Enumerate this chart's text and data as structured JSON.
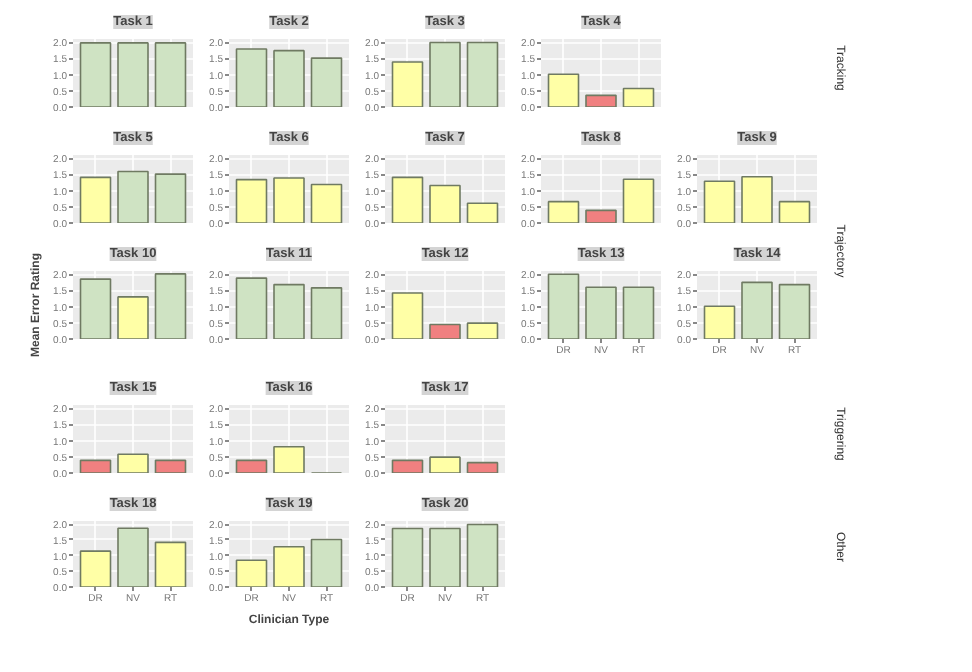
{
  "chart_data": [
    {
      "type": "bar",
      "title": "Task 1",
      "categories": [
        null,
        null,
        null
      ],
      "values": [
        1.98,
        1.98,
        1.98
      ],
      "colors": [
        "#cfe3c3",
        "#cfe3c3",
        "#cfe3c3"
      ],
      "ylim": [
        0,
        2.1
      ],
      "yticks": [
        {
          "value": 0,
          "label": "0.0"
        },
        {
          "value": 0.5,
          "label": "0.5"
        },
        {
          "value": 1,
          "label": "1.0"
        },
        {
          "value": 1.5,
          "label": "1.5"
        },
        {
          "value": 2,
          "label": "2.0"
        }
      ],
      "grid": true,
      "tick_labels": "y"
    },
    {
      "type": "bar",
      "title": "Task 2",
      "categories": [
        null,
        null,
        null
      ],
      "values": [
        1.79,
        1.74,
        1.51
      ],
      "colors": [
        "#cfe3c3",
        "#cfe3c3",
        "#cfe3c3"
      ],
      "ylim": [
        0,
        2.1
      ],
      "yticks": [
        {
          "value": 0,
          "label": "0.0"
        },
        {
          "value": 0.5,
          "label": "0.5"
        },
        {
          "value": 1,
          "label": "1.0"
        },
        {
          "value": 1.5,
          "label": "1.5"
        },
        {
          "value": 2,
          "label": "2.0"
        }
      ],
      "grid": true,
      "tick_labels": "y"
    },
    {
      "type": "bar",
      "title": "Task 3",
      "categories": [
        null,
        null,
        null
      ],
      "values": [
        1.39,
        1.99,
        1.99
      ],
      "colors": [
        "#ffffa6",
        "#cfe3c3",
        "#cfe3c3"
      ],
      "ylim": [
        0,
        2.1
      ],
      "yticks": [
        {
          "value": 0,
          "label": "0.0"
        },
        {
          "value": 0.5,
          "label": "0.5"
        },
        {
          "value": 1,
          "label": "1.0"
        },
        {
          "value": 1.5,
          "label": "1.5"
        },
        {
          "value": 2,
          "label": "2.0"
        }
      ],
      "grid": true,
      "tick_labels": "y"
    },
    {
      "type": "bar",
      "title": "Task 4",
      "categories": [
        null,
        null,
        null
      ],
      "values": [
        1.01,
        0.36,
        0.57
      ],
      "colors": [
        "#ffffa6",
        "#f08080",
        "#ffffa6"
      ],
      "ylim": [
        0,
        2.1
      ],
      "yticks": [
        {
          "value": 0,
          "label": "0.0"
        },
        {
          "value": 0.5,
          "label": "0.5"
        },
        {
          "value": 1,
          "label": "1.0"
        },
        {
          "value": 1.5,
          "label": "1.5"
        },
        {
          "value": 2,
          "label": "2.0"
        }
      ],
      "grid": true,
      "tick_labels": "y",
      "annotations": [
        "Tracking"
      ]
    },
    {
      "type": "bar",
      "title": "Task 5",
      "categories": [
        null,
        null,
        null
      ],
      "values": [
        1.41,
        1.59,
        1.51
      ],
      "colors": [
        "#ffffa6",
        "#cfe3c3",
        "#cfe3c3"
      ],
      "ylim": [
        0,
        2.1
      ],
      "yticks": [
        {
          "value": 0,
          "label": "0.0"
        },
        {
          "value": 0.5,
          "label": "0.5"
        },
        {
          "value": 1,
          "label": "1.0"
        },
        {
          "value": 1.5,
          "label": "1.5"
        },
        {
          "value": 2,
          "label": "2.0"
        }
      ],
      "grid": true,
      "tick_labels": "y"
    },
    {
      "type": "bar",
      "title": "Task 6",
      "categories": [
        null,
        null,
        null
      ],
      "values": [
        1.34,
        1.39,
        1.19
      ],
      "colors": [
        "#ffffa6",
        "#ffffa6",
        "#ffffa6"
      ],
      "ylim": [
        0,
        2.1
      ],
      "yticks": [
        {
          "value": 0,
          "label": "0.0"
        },
        {
          "value": 0.5,
          "label": "0.5"
        },
        {
          "value": 1,
          "label": "1.0"
        },
        {
          "value": 1.5,
          "label": "1.5"
        },
        {
          "value": 2,
          "label": "2.0"
        }
      ],
      "grid": true,
      "tick_labels": "y"
    },
    {
      "type": "bar",
      "title": "Task 7",
      "categories": [
        null,
        null,
        null
      ],
      "values": [
        1.41,
        1.16,
        0.61
      ],
      "colors": [
        "#ffffa6",
        "#ffffa6",
        "#ffffa6"
      ],
      "ylim": [
        0,
        2.1
      ],
      "yticks": [
        {
          "value": 0,
          "label": "0.0"
        },
        {
          "value": 0.5,
          "label": "0.5"
        },
        {
          "value": 1,
          "label": "1.0"
        },
        {
          "value": 1.5,
          "label": "1.5"
        },
        {
          "value": 2,
          "label": "2.0"
        }
      ],
      "grid": true,
      "tick_labels": "y"
    },
    {
      "type": "bar",
      "title": "Task 8",
      "categories": [
        null,
        null,
        null
      ],
      "values": [
        0.66,
        0.39,
        1.35
      ],
      "colors": [
        "#ffffa6",
        "#f08080",
        "#ffffa6"
      ],
      "ylim": [
        0,
        2.1
      ],
      "yticks": [
        {
          "value": 0,
          "label": "0.0"
        },
        {
          "value": 0.5,
          "label": "0.5"
        },
        {
          "value": 1,
          "label": "1.0"
        },
        {
          "value": 1.5,
          "label": "1.5"
        },
        {
          "value": 2,
          "label": "2.0"
        }
      ],
      "grid": true,
      "tick_labels": "y"
    },
    {
      "type": "bar",
      "title": "Task 9",
      "categories": [
        null,
        null,
        null
      ],
      "values": [
        1.29,
        1.43,
        0.66
      ],
      "colors": [
        "#ffffa6",
        "#ffffa6",
        "#ffffa6"
      ],
      "ylim": [
        0,
        2.1
      ],
      "yticks": [
        {
          "value": 0,
          "label": "0.0"
        },
        {
          "value": 0.5,
          "label": "0.5"
        },
        {
          "value": 1,
          "label": "1.0"
        },
        {
          "value": 1.5,
          "label": "1.5"
        },
        {
          "value": 2,
          "label": "2.0"
        }
      ],
      "grid": true,
      "tick_labels": "y",
      "annotations": [
        "Trajectory"
      ]
    },
    {
      "type": "bar",
      "title": "Task 10",
      "categories": [
        null,
        null,
        null
      ],
      "values": [
        1.85,
        1.3,
        2.01
      ],
      "colors": [
        "#cfe3c3",
        "#ffffa6",
        "#cfe3c3"
      ],
      "ylim": [
        0,
        2.1
      ],
      "yticks": [
        {
          "value": 0,
          "label": "0.0"
        },
        {
          "value": 0.5,
          "label": "0.5"
        },
        {
          "value": 1,
          "label": "1.0"
        },
        {
          "value": 1.5,
          "label": "1.5"
        },
        {
          "value": 2,
          "label": "2.0"
        }
      ],
      "grid": true,
      "tick_labels": "y",
      "ylabel": "Mean Error Rating"
    },
    {
      "type": "bar",
      "title": "Task 11",
      "categories": [
        null,
        null,
        null
      ],
      "values": [
        1.88,
        1.68,
        1.58
      ],
      "colors": [
        "#cfe3c3",
        "#cfe3c3",
        "#cfe3c3"
      ],
      "ylim": [
        0,
        2.1
      ],
      "yticks": [
        {
          "value": 0,
          "label": "0.0"
        },
        {
          "value": 0.5,
          "label": "0.5"
        },
        {
          "value": 1,
          "label": "1.0"
        },
        {
          "value": 1.5,
          "label": "1.5"
        },
        {
          "value": 2,
          "label": "2.0"
        }
      ],
      "grid": true,
      "tick_labels": "y"
    },
    {
      "type": "bar",
      "title": "Task 12",
      "categories": [
        null,
        null,
        null
      ],
      "values": [
        1.42,
        0.45,
        0.49
      ],
      "colors": [
        "#ffffa6",
        "#f08080",
        "#ffffa6"
      ],
      "ylim": [
        0,
        2.1
      ],
      "yticks": [
        {
          "value": 0,
          "label": "0.0"
        },
        {
          "value": 0.5,
          "label": "0.5"
        },
        {
          "value": 1,
          "label": "1.0"
        },
        {
          "value": 1.5,
          "label": "1.5"
        },
        {
          "value": 2,
          "label": "2.0"
        }
      ],
      "grid": true,
      "tick_labels": "y"
    },
    {
      "type": "bar",
      "title": "Task 13",
      "categories": [
        "DR",
        "NV",
        "RT"
      ],
      "values": [
        2.0,
        1.6,
        1.6
      ],
      "colors": [
        "#cfe3c3",
        "#cfe3c3",
        "#cfe3c3"
      ],
      "ylim": [
        0,
        2.1
      ],
      "yticks": [
        {
          "value": 0,
          "label": "0.0"
        },
        {
          "value": 0.5,
          "label": "0.5"
        },
        {
          "value": 1,
          "label": "1.0"
        },
        {
          "value": 1.5,
          "label": "1.5"
        },
        {
          "value": 2,
          "label": "2.0"
        }
      ],
      "grid": true
    },
    {
      "type": "bar",
      "title": "Task 14",
      "categories": [
        "DR",
        "NV",
        "RT"
      ],
      "values": [
        1.01,
        1.75,
        1.68
      ],
      "colors": [
        "#ffffa6",
        "#cfe3c3",
        "#cfe3c3"
      ],
      "ylim": [
        0,
        2.1
      ],
      "yticks": [
        {
          "value": 0,
          "label": "0.0"
        },
        {
          "value": 0.5,
          "label": "0.5"
        },
        {
          "value": 1,
          "label": "1.0"
        },
        {
          "value": 1.5,
          "label": "1.5"
        },
        {
          "value": 2,
          "label": "2.0"
        }
      ],
      "grid": true
    },
    {
      "type": "bar",
      "title": "Task 15",
      "categories": [
        null,
        null,
        null
      ],
      "values": [
        0.39,
        0.58,
        0.39
      ],
      "colors": [
        "#f08080",
        "#ffffa6",
        "#f08080"
      ],
      "ylim": [
        0,
        2.1
      ],
      "yticks": [
        {
          "value": 0,
          "label": "0.0"
        },
        {
          "value": 0.5,
          "label": "0.5"
        },
        {
          "value": 1,
          "label": "1.0"
        },
        {
          "value": 1.5,
          "label": "1.5"
        },
        {
          "value": 2,
          "label": "2.0"
        }
      ],
      "grid": true,
      "tick_labels": "y"
    },
    {
      "type": "bar",
      "title": "Task 16",
      "categories": [
        null,
        null,
        null
      ],
      "values": [
        0.39,
        0.81,
        0.0
      ],
      "colors": [
        "#f08080",
        "#ffffa6",
        "#f08080"
      ],
      "ylim": [
        0,
        2.1
      ],
      "yticks": [
        {
          "value": 0,
          "label": "0.0"
        },
        {
          "value": 0.5,
          "label": "0.5"
        },
        {
          "value": 1,
          "label": "1.0"
        },
        {
          "value": 1.5,
          "label": "1.5"
        },
        {
          "value": 2,
          "label": "2.0"
        }
      ],
      "grid": true,
      "tick_labels": "y"
    },
    {
      "type": "bar",
      "title": "Task 17",
      "categories": [
        null,
        null,
        null
      ],
      "values": [
        0.39,
        0.49,
        0.32
      ],
      "colors": [
        "#f08080",
        "#ffffa6",
        "#f08080"
      ],
      "ylim": [
        0,
        2.1
      ],
      "yticks": [
        {
          "value": 0,
          "label": "0.0"
        },
        {
          "value": 0.5,
          "label": "0.5"
        },
        {
          "value": 1,
          "label": "1.0"
        },
        {
          "value": 1.5,
          "label": "1.5"
        },
        {
          "value": 2,
          "label": "2.0"
        }
      ],
      "grid": true,
      "tick_labels": "y",
      "annotations": [
        "Triggering"
      ]
    },
    {
      "type": "bar",
      "title": "Task 18",
      "categories": [
        "DR",
        "NV",
        "RT"
      ],
      "values": [
        1.14,
        1.87,
        1.42
      ],
      "colors": [
        "#ffffa6",
        "#cfe3c3",
        "#ffffa6"
      ],
      "ylim": [
        0,
        2.1
      ],
      "yticks": [
        {
          "value": 0,
          "label": "0.0"
        },
        {
          "value": 0.5,
          "label": "0.5"
        },
        {
          "value": 1,
          "label": "1.0"
        },
        {
          "value": 1.5,
          "label": "1.5"
        },
        {
          "value": 2,
          "label": "2.0"
        }
      ],
      "grid": true
    },
    {
      "type": "bar",
      "title": "Task 19",
      "categories": [
        "DR",
        "NV",
        "RT"
      ],
      "values": [
        0.85,
        1.28,
        1.51
      ],
      "colors": [
        "#ffffa6",
        "#ffffa6",
        "#cfe3c3"
      ],
      "ylim": [
        0,
        2.1
      ],
      "yticks": [
        {
          "value": 0,
          "label": "0.0"
        },
        {
          "value": 0.5,
          "label": "0.5"
        },
        {
          "value": 1,
          "label": "1.0"
        },
        {
          "value": 1.5,
          "label": "1.5"
        },
        {
          "value": 2,
          "label": "2.0"
        }
      ],
      "grid": true,
      "xlabel": "Clinician Type"
    },
    {
      "type": "bar",
      "title": "Task 20",
      "categories": [
        "DR",
        "NV",
        "RT"
      ],
      "values": [
        1.86,
        1.86,
        1.99
      ],
      "colors": [
        "#cfe3c3",
        "#cfe3c3",
        "#cfe3c3"
      ],
      "ylim": [
        0,
        2.1
      ],
      "yticks": [
        {
          "value": 0,
          "label": "0.0"
        },
        {
          "value": 0.5,
          "label": "0.5"
        },
        {
          "value": 1,
          "label": "1.0"
        },
        {
          "value": 1.5,
          "label": "1.5"
        },
        {
          "value": 2,
          "label": "2.0"
        }
      ],
      "grid": true,
      "annotations": [
        "Other"
      ]
    }
  ]
}
